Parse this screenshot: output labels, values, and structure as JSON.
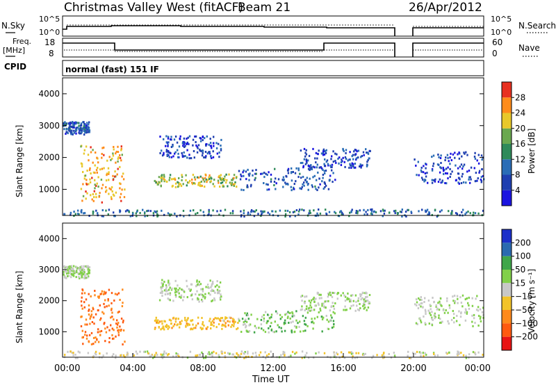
{
  "header": {
    "title": "Christmas Valley West (fitACF)",
    "beam": "Beam 21",
    "date": "26/Apr/2012"
  },
  "top_panels": {
    "nsky_label": "N.Sky",
    "nsky_ticks": [
      "10^5",
      "10^0"
    ],
    "nsearch_label": "N.Search",
    "nsearch_ticks": [
      "10^5",
      "10^0"
    ],
    "freq_label": "Freq.",
    "freq_unit": "[MHz]",
    "freq_ticks": [
      "18",
      "8"
    ],
    "nave_label": "Nave",
    "nave_ticks": [
      "60",
      "0"
    ],
    "cpid_label": "CPID",
    "cpid_value": "normal (fast) 151 IF"
  },
  "chart_data": [
    {
      "type": "heatmap",
      "quantity": "power",
      "ylabel": "Slant Range [km]",
      "xlim": [
        0,
        24
      ],
      "ylim": [
        180,
        4500
      ],
      "ytick_values": [
        1000,
        2000,
        3000,
        4000
      ],
      "ytick_labels": [
        "1000",
        "2000",
        "3000",
        "4000"
      ],
      "colorbar": {
        "label": "Power [dB]",
        "tick_labels": [
          "4",
          "8",
          "12",
          "16",
          "20",
          "24",
          "28"
        ],
        "colors": [
          "#1b14e0",
          "#1f3fb0",
          "#2a6db6",
          "#2f8a5a",
          "#6aa84f",
          "#e8c82a",
          "#ff8c1a",
          "#e83020"
        ]
      },
      "features": [
        {
          "region": "echo band",
          "t_start": 0.0,
          "t_end": 1.5,
          "range_km": [
            2750,
            3150
          ],
          "level": 8
        },
        {
          "region": "echo arc",
          "t_start": 1.0,
          "t_end": 3.5,
          "range_km": [
            600,
            2400
          ],
          "level": 24
        },
        {
          "region": "echo band",
          "t_start": 5.2,
          "t_end": 10.0,
          "range_km": [
            1100,
            1500
          ],
          "level": 20
        },
        {
          "region": "echo patch",
          "t_start": 5.5,
          "t_end": 9.0,
          "range_km": [
            2000,
            2700
          ],
          "level": 6
        },
        {
          "region": "echo patch",
          "t_start": 10.0,
          "t_end": 15.5,
          "range_km": [
            1000,
            1700
          ],
          "level": 8
        },
        {
          "region": "echo band",
          "t_start": 13.5,
          "t_end": 17.5,
          "range_km": [
            1700,
            2300
          ],
          "level": 6
        },
        {
          "region": "echo patch",
          "t_start": 20.0,
          "t_end": 24.0,
          "range_km": [
            1200,
            2200
          ],
          "level": 6
        },
        {
          "region": "ground scatter",
          "t_start": 0.0,
          "t_end": 24.0,
          "range_km": [
            180,
            400
          ],
          "level": 10
        }
      ]
    },
    {
      "type": "heatmap",
      "quantity": "velocity",
      "ylabel": "Slant Range [km]",
      "xlabel": "Time UT",
      "xlim": [
        0,
        24
      ],
      "ylim": [
        180,
        4500
      ],
      "xtick_values": [
        0,
        4,
        8,
        12,
        16,
        20,
        24
      ],
      "xtick_labels": [
        "00:00",
        "04:00",
        "08:00",
        "12:00",
        "16:00",
        "20:00",
        "00:00"
      ],
      "ytick_values": [
        1000,
        2000,
        3000,
        4000
      ],
      "ytick_labels": [
        "1000",
        "2000",
        "3000",
        "4000"
      ],
      "colorbar": {
        "label": "Velocity [m s⁻¹]",
        "tick_labels": [
          "200",
          "100",
          "50",
          "15",
          "−15",
          "−50",
          "−100",
          "−200"
        ],
        "colors": [
          "#1b2fc9",
          "#2a6ab0",
          "#3fa64a",
          "#82d04a",
          "#c8c8c8",
          "#f2c32a",
          "#ff8a1c",
          "#ff5a10",
          "#e81414"
        ]
      },
      "features": [
        {
          "region": "echo band",
          "t_start": 0.0,
          "t_end": 1.5,
          "range_km": [
            2750,
            3150
          ],
          "velocity": 0
        },
        {
          "region": "echo arc",
          "t_start": 1.0,
          "t_end": 3.5,
          "range_km": [
            600,
            2400
          ],
          "velocity": -150
        },
        {
          "region": "echo band",
          "t_start": 5.2,
          "t_end": 10.0,
          "range_km": [
            1100,
            1500
          ],
          "velocity": -60
        },
        {
          "region": "echo patch",
          "t_start": 5.5,
          "t_end": 9.0,
          "range_km": [
            2000,
            2700
          ],
          "velocity": 0
        },
        {
          "region": "echo patch",
          "t_start": 10.0,
          "t_end": 15.5,
          "range_km": [
            1000,
            1700
          ],
          "velocity": 20
        },
        {
          "region": "echo band",
          "t_start": 13.5,
          "t_end": 17.5,
          "range_km": [
            1700,
            2300
          ],
          "velocity": 0
        },
        {
          "region": "echo patch",
          "t_start": 20.0,
          "t_end": 24.0,
          "range_km": [
            1200,
            2200
          ],
          "velocity": 0
        },
        {
          "region": "ground scatter",
          "t_start": 0.0,
          "t_end": 24.0,
          "range_km": [
            180,
            400
          ],
          "velocity": -20
        }
      ],
      "data_gap": [
        19.0,
        19.6
      ]
    }
  ]
}
